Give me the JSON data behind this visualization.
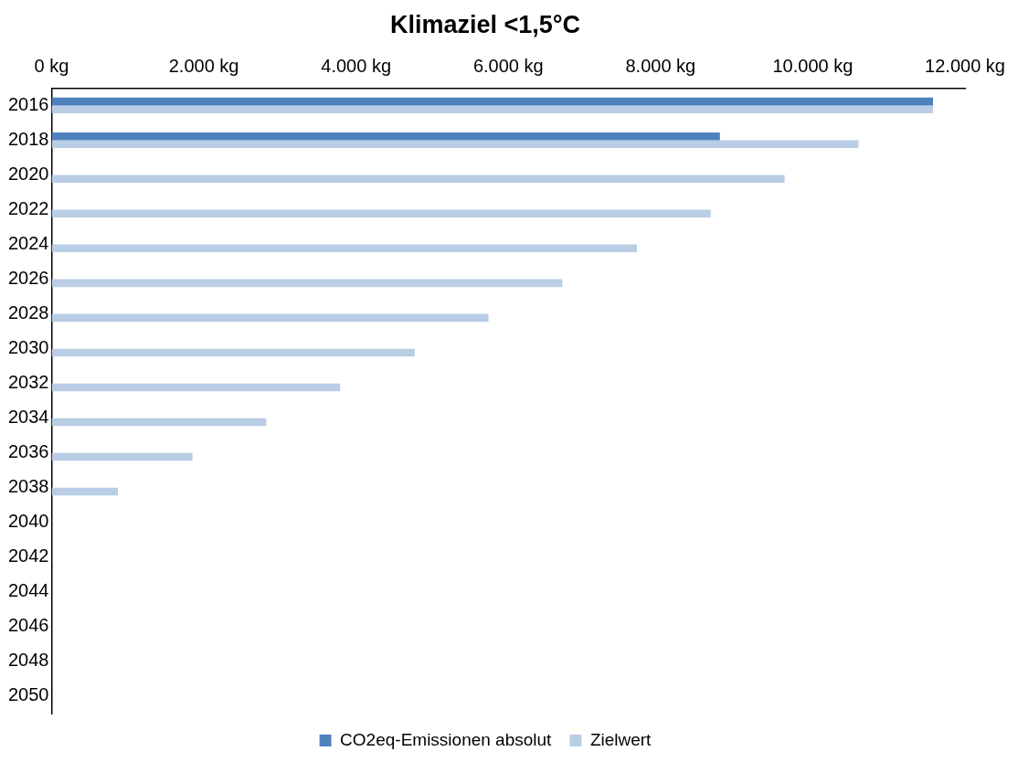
{
  "chart_data": {
    "type": "bar",
    "orientation": "horizontal",
    "title": "Klimaziel <1,5°C",
    "categories": [
      "2016",
      "2018",
      "2020",
      "2022",
      "2024",
      "2026",
      "2028",
      "2030",
      "2032",
      "2034",
      "2036",
      "2038",
      "2040",
      "2042",
      "2044",
      "2046",
      "2048",
      "2050"
    ],
    "series": [
      {
        "name": "CO2eq-Emissionen absolut",
        "color": "#4f81bd",
        "values": [
          11580,
          8780,
          null,
          null,
          null,
          null,
          null,
          null,
          null,
          null,
          null,
          null,
          null,
          null,
          null,
          null,
          null,
          null
        ]
      },
      {
        "name": "Zielwert",
        "color": "#b9cde5",
        "values": [
          11580,
          10600,
          9630,
          8660,
          7690,
          6710,
          5740,
          4770,
          3790,
          2820,
          1850,
          870,
          null,
          null,
          null,
          null,
          null,
          null
        ]
      }
    ],
    "xlim": [
      0,
      12000
    ],
    "xticks": [
      {
        "value": 0,
        "label": "0 kg"
      },
      {
        "value": 2000,
        "label": "2.000 kg"
      },
      {
        "value": 4000,
        "label": "4.000 kg"
      },
      {
        "value": 6000,
        "label": "6.000 kg"
      },
      {
        "value": 8000,
        "label": "8.000 kg"
      },
      {
        "value": 10000,
        "label": "10.000 kg"
      },
      {
        "value": 12000,
        "label": "12.000 kg"
      }
    ],
    "grid": false,
    "legend": "bottom"
  }
}
